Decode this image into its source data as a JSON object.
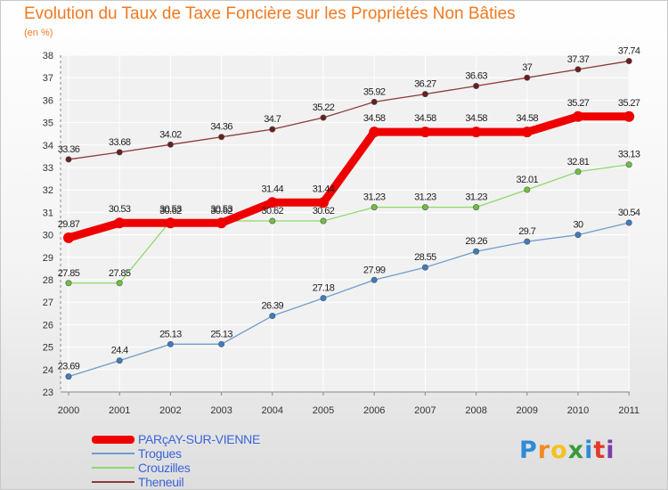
{
  "title": "Evolution du Taux de Taxe Foncière sur les Propriétés Non Bâties",
  "unit_label": "(en %)",
  "logo": {
    "text": "Proxiti",
    "letters": [
      {
        "ch": "P",
        "color": "#2e8bd8"
      },
      {
        "ch": "r",
        "color": "#f08a24"
      },
      {
        "ch": "o",
        "color": "#f3c21e"
      },
      {
        "ch": "x",
        "color": "#3a9a3a"
      },
      {
        "ch": "i",
        "color": "#2e8bd8"
      },
      {
        "ch": "t",
        "color": "#e13a2b"
      },
      {
        "ch": "i",
        "color": "#7a3ca8"
      }
    ]
  },
  "colors": {
    "title": "#ef7a22",
    "axis": "#888888",
    "grid": "#ffffff",
    "legend_text": "#3b64d9",
    "label_text": "#222222"
  },
  "chart_data": {
    "type": "line",
    "title": "Evolution du Taux de Taxe Foncière sur les Propriétés Non Bâties",
    "ylabel": "(en %)",
    "xlabel": "",
    "categories": [
      "2000",
      "2001",
      "2002",
      "2003",
      "2004",
      "2005",
      "2006",
      "2007",
      "2008",
      "2009",
      "2010",
      "2011"
    ],
    "ylim": [
      23,
      38
    ],
    "yticks": [
      23,
      24,
      25,
      26,
      27,
      28,
      29,
      30,
      31,
      32,
      33,
      34,
      35,
      36,
      37,
      38
    ],
    "grid": true,
    "legend_position": "bottom-left",
    "series": [
      {
        "name": "PARçAY-SUR-VIENNE",
        "color": "#ee0000",
        "values": [
          29.87,
          30.53,
          30.53,
          30.53,
          31.44,
          31.44,
          34.58,
          34.58,
          34.58,
          34.58,
          35.27,
          35.27
        ],
        "labels": [
          "29.87",
          "30.53",
          "30.53",
          "30.53",
          "31.44",
          "31.44",
          "34.58",
          "34.58",
          "34.58",
          "34.58",
          "35.27",
          "35.27"
        ],
        "emphasis": true
      },
      {
        "name": "Trogues",
        "color": "#6f9ccc",
        "marker_color": "#3e7cc0",
        "values": [
          23.69,
          24.4,
          25.13,
          25.13,
          26.39,
          27.18,
          27.99,
          28.55,
          29.26,
          29.7,
          30,
          30.54
        ],
        "labels": [
          "23.69",
          "24.4",
          "25.13",
          "25.13",
          "26.39",
          "27.18",
          "27.99",
          "28.55",
          "29.26",
          "29.7",
          "30",
          "30.54"
        ]
      },
      {
        "name": "Crouzilles",
        "color": "#8fd86b",
        "marker_color": "#6cc23f",
        "values": [
          27.85,
          27.85,
          30.62,
          30.62,
          30.62,
          30.62,
          31.23,
          31.23,
          31.23,
          32.01,
          32.81,
          33.13
        ],
        "labels": [
          "27.85",
          "27.85",
          "30.62",
          "30.62",
          "30.62",
          "30.62",
          "31.23",
          "31.23",
          "31.23",
          "32.01",
          "32.81",
          "33.13"
        ]
      },
      {
        "name": "Theneuil",
        "color": "#8a3a3a",
        "marker_color": "#6a1e1e",
        "values": [
          33.36,
          33.68,
          34.02,
          34.36,
          34.7,
          35.22,
          35.92,
          36.27,
          36.63,
          37,
          37.37,
          37.74
        ],
        "labels": [
          "33.36",
          "33.68",
          "34.02",
          "34.36",
          "34.7",
          "35.22",
          "35.92",
          "36.27",
          "36.63",
          "37",
          "37.37",
          "37.74"
        ]
      }
    ]
  }
}
